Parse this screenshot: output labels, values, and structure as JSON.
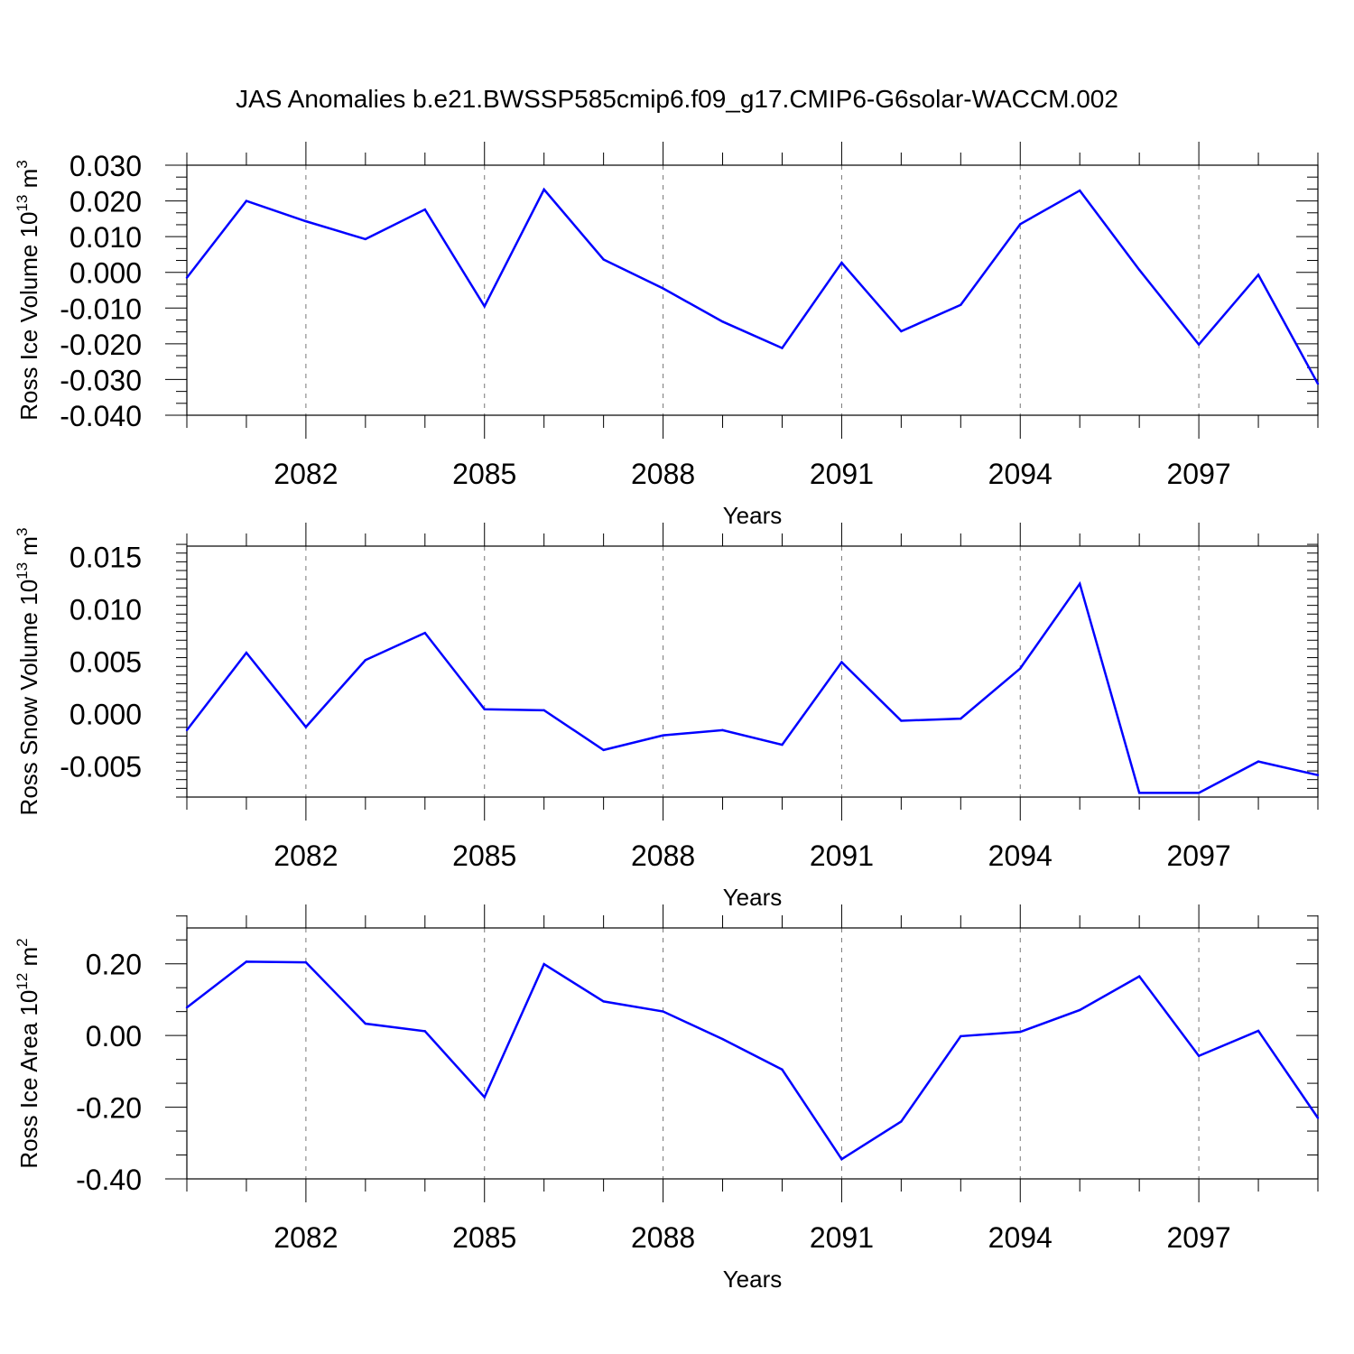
{
  "title": "JAS Anomalies b.e21.BWSSP585cmip6.f09_g17.CMIP6-G6solar-WACCM.002",
  "chart_data": [
    {
      "type": "line",
      "xlabel": "Years",
      "ylabel": {
        "text": "Ross Ice Volume 10",
        "exp": "13",
        "unit": " m",
        "unit_exp": "3"
      },
      "xlim": [
        2080,
        2099
      ],
      "ylim": [
        -0.04,
        0.03
      ],
      "x_ticks": [
        "2082",
        "2085",
        "2088",
        "2091",
        "2094",
        "2097"
      ],
      "y_ticks": [
        "0.030",
        "0.020",
        "0.010",
        "0.000",
        "-0.010",
        "-0.020",
        "-0.030",
        "-0.040"
      ],
      "grid": "vertical dashed at major year ticks",
      "line_color": "#0000ff",
      "x": [
        2080,
        2081,
        2082,
        2083,
        2084,
        2085,
        2086,
        2087,
        2088,
        2089,
        2090,
        2091,
        2092,
        2093,
        2094,
        2095,
        2096,
        2097,
        2098,
        2099
      ],
      "values": [
        -0.0015,
        0.02,
        0.0143,
        0.0093,
        0.0176,
        -0.0095,
        0.0232,
        0.0036,
        -0.0045,
        -0.0138,
        -0.0212,
        0.0027,
        -0.0165,
        -0.0091,
        0.0135,
        0.0229,
        0.0007,
        -0.0202,
        -0.0007,
        -0.0312
      ]
    },
    {
      "type": "line",
      "xlabel": "Years",
      "ylabel": {
        "text": "Ross Snow Volume 10",
        "exp": "13",
        "unit": " m",
        "unit_exp": "3"
      },
      "xlim": [
        2080,
        2099
      ],
      "ylim": [
        -0.008,
        0.016
      ],
      "x_ticks": [
        "2082",
        "2085",
        "2088",
        "2091",
        "2094",
        "2097"
      ],
      "y_ticks": [
        "0.015",
        "0.010",
        "0.005",
        "0.000",
        "-0.005"
      ],
      "grid": "vertical dashed at major year ticks",
      "line_color": "#0000ff",
      "x": [
        2080,
        2081,
        2082,
        2083,
        2084,
        2085,
        2086,
        2087,
        2088,
        2089,
        2090,
        2091,
        2092,
        2093,
        2094,
        2095,
        2096,
        2097,
        2098,
        2099
      ],
      "values": [
        -0.0016,
        0.0058,
        -0.0013,
        0.0051,
        0.0077,
        0.0004,
        0.0003,
        -0.0035,
        -0.0021,
        -0.0016,
        -0.003,
        0.0049,
        -0.0007,
        -0.0005,
        0.0043,
        0.0124,
        -0.0076,
        -0.0076,
        -0.0046,
        -0.0059
      ]
    },
    {
      "type": "line",
      "xlabel": "Years",
      "ylabel": {
        "text": "Ross Ice Area 10",
        "exp": "12",
        "unit": " m",
        "unit_exp": "2"
      },
      "xlim": [
        2080,
        2099
      ],
      "ylim": [
        -0.4,
        0.3
      ],
      "x_ticks": [
        "2082",
        "2085",
        "2088",
        "2091",
        "2094",
        "2097"
      ],
      "y_ticks": [
        "0.20",
        "0.00",
        "-0.20",
        "-0.40"
      ],
      "grid": "vertical dashed at major year ticks",
      "line_color": "#0000ff",
      "x": [
        2080,
        2081,
        2082,
        2083,
        2084,
        2085,
        2086,
        2087,
        2088,
        2089,
        2090,
        2091,
        2092,
        2093,
        2094,
        2095,
        2096,
        2097,
        2098,
        2099
      ],
      "values": [
        0.078,
        0.206,
        0.204,
        0.033,
        0.012,
        -0.172,
        0.199,
        0.095,
        0.067,
        -0.01,
        -0.095,
        -0.345,
        -0.24,
        -0.002,
        0.01,
        0.071,
        0.165,
        -0.057,
        0.013,
        -0.23
      ]
    }
  ]
}
